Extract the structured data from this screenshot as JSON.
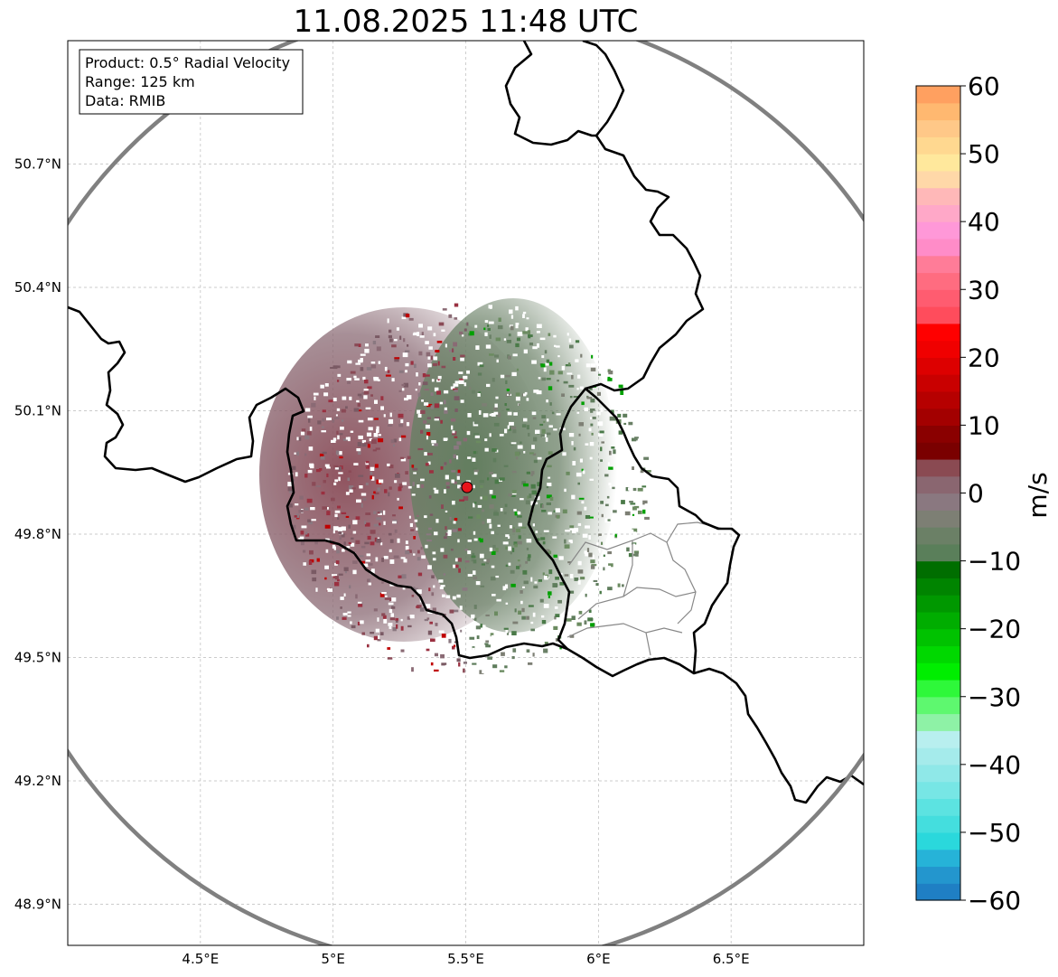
{
  "title": "11.08.2025 11:48 UTC",
  "info_box": {
    "product": "Product: 0.5° Radial Velocity",
    "range": "Range: 125 km",
    "source": "Data: RMIB"
  },
  "map": {
    "lon_range": [
      4.0,
      7.0
    ],
    "lat_range": [
      48.8,
      51.0
    ],
    "lon_ticks": [
      {
        "value": 4.5,
        "label": "4.5°E"
      },
      {
        "value": 5.0,
        "label": "5°E"
      },
      {
        "value": 5.5,
        "label": "5.5°E"
      },
      {
        "value": 6.0,
        "label": "6°E"
      },
      {
        "value": 6.5,
        "label": "6.5°E"
      }
    ],
    "lat_ticks": [
      {
        "value": 48.9,
        "label": "48.9°N"
      },
      {
        "value": 49.2,
        "label": "49.2°N"
      },
      {
        "value": 49.5,
        "label": "49.5°N"
      },
      {
        "value": 49.8,
        "label": "49.8°N"
      },
      {
        "value": 50.1,
        "label": "50.1°N"
      },
      {
        "value": 50.4,
        "label": "50.4°N"
      },
      {
        "value": 50.7,
        "label": "50.7°N"
      }
    ],
    "radar_site": {
      "lon": 5.505,
      "lat": 49.914,
      "color": "#e8141b"
    },
    "range_ring_color": "#808080",
    "border_color": "#000000",
    "admin_border_color": "#888888"
  },
  "colorbar": {
    "label": "m/s",
    "min": -60,
    "max": 60,
    "ticks": [
      {
        "value": 60,
        "label": "60"
      },
      {
        "value": 50,
        "label": "50"
      },
      {
        "value": 40,
        "label": "40"
      },
      {
        "value": 30,
        "label": "30"
      },
      {
        "value": 20,
        "label": "20"
      },
      {
        "value": 10,
        "label": "10"
      },
      {
        "value": 0,
        "label": "0"
      },
      {
        "value": -10,
        "label": "−10"
      },
      {
        "value": -20,
        "label": "−20"
      },
      {
        "value": -30,
        "label": "−30"
      },
      {
        "value": -40,
        "label": "−40"
      },
      {
        "value": -50,
        "label": "−50"
      },
      {
        "value": -60,
        "label": "−60"
      }
    ],
    "colors": [
      "#1f7fc4",
      "#2396ce",
      "#26b3d8",
      "#2ad8dc",
      "#44dede",
      "#5ce3e1",
      "#77e6e5",
      "#8fe8e8",
      "#a5ebeb",
      "#b8efef",
      "#8ef2a6",
      "#5ef86f",
      "#2ef83a",
      "#00ee00",
      "#00d800",
      "#00c200",
      "#00ad00",
      "#009800",
      "#008400",
      "#006e00",
      "#5a7f5a",
      "#6b8066",
      "#7d7f74",
      "#8a7880",
      "#8a6670",
      "#8a4a52",
      "#7a0000",
      "#8a0000",
      "#a30000",
      "#b60000",
      "#c90000",
      "#dd0000",
      "#f00000",
      "#ff0000",
      "#ff4c5c",
      "#ff5c70",
      "#ff6c80",
      "#ff7c98",
      "#ff8cc8",
      "#ff98d8",
      "#ffa8c8",
      "#ffb8b8",
      "#ffd8a8",
      "#ffe89c",
      "#ffd890",
      "#ffc888",
      "#ffb870",
      "#ffa060"
    ]
  }
}
